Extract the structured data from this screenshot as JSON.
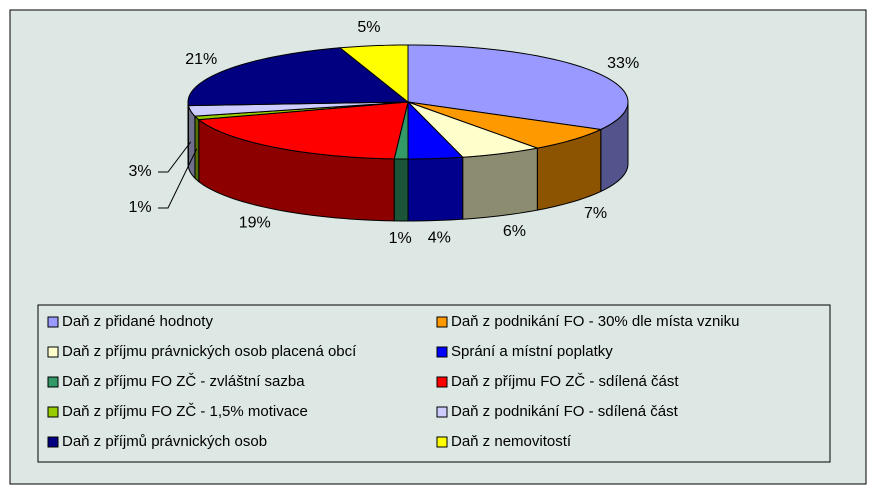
{
  "chart_data": {
    "type": "pie3d",
    "categories": [
      "Daň z přidané hodnoty",
      "Daň z podnikání FO - 30% dle místa vzniku",
      "Daň z příjmu právnických osob placená obcí",
      "Sprání a místní poplatky",
      "Daň z příjmu FO ZČ - zvláštní sazba",
      "Daň z příjmu FO ZČ - sdílená část",
      "Daň z příjmu FO ZČ - 1,5% motivace",
      "Daň z podnikání FO - sdílená část",
      "Daň z příjmů právnických osob",
      "Daň z nemovitostí"
    ],
    "values": [
      33,
      7,
      6,
      4,
      1,
      19,
      1,
      3,
      21,
      5
    ],
    "value_labels": [
      "33%",
      "7%",
      "6%",
      "4%",
      "1%",
      "19%",
      "1%",
      "3%",
      "21%",
      "5%"
    ],
    "colors": [
      "#9999ff",
      "#ff9900",
      "#ffffcc",
      "#0000ff",
      "#339966",
      "#ff0000",
      "#99cc00",
      "#ccccff",
      "#000080",
      "#ffff00"
    ],
    "legend": "bottom"
  }
}
